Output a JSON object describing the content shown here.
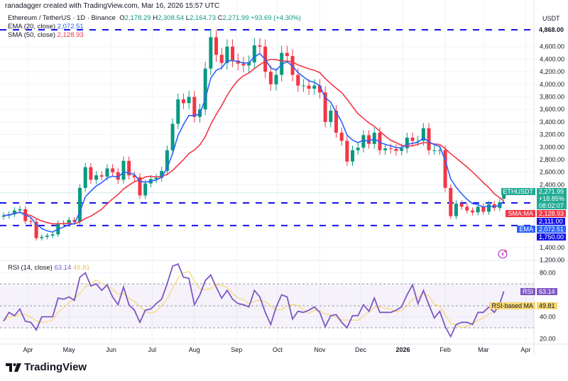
{
  "header": {
    "credit": "ranadagger created with TradingView.com, Mar 16, 2026 15:57 UTC",
    "symbol": "Ethereum / TetherUS · 1D · Binance",
    "open_label": "O",
    "open": "2,178.29",
    "high_label": "H",
    "high": "2,308.54",
    "low_label": "L",
    "low": "2,164.73",
    "close_label": "C",
    "close": "2,271.99",
    "change": "+93.69 (+4.30%)"
  },
  "indicators": {
    "ema_label": "EMA (20, close)",
    "ema_value": "2,072.51",
    "sma_label": "SMA (50, close)",
    "sma_value": "2,128.93",
    "rsi_label": "RSI (14, close)",
    "rsi_value": "63.14",
    "rsi_ma_value": "49.81"
  },
  "badges": {
    "symbol": "ETHUSDT",
    "price": "2,271.99",
    "change_pct": "+18.85%",
    "countdown": "08:02:07",
    "sma_name": "SMA:MA",
    "sma": "2,128.93",
    "level_mid": "2,111.00",
    "ema_name": "EMA",
    "ema": "2,072.51",
    "level_low": "1,750.00",
    "level_high": "4,868.00",
    "rsi_name": "RSI",
    "rsi": "63.14",
    "rsi_ma_name": "RSI-based MA",
    "rsi_ma": "49.81"
  },
  "axis": {
    "currency": "USDT",
    "price_ticks": [
      "4,600.00",
      "4,400.00",
      "4,200.00",
      "4,000.00",
      "3,800.00",
      "3,600.00",
      "3,400.00",
      "3,200.00",
      "3,000.00",
      "2,800.00",
      "2,600.00",
      "2,400.00",
      "1,400.00",
      "1,200.00"
    ],
    "rsi_ticks": [
      "80.00",
      "40.00",
      "20.00"
    ],
    "months": [
      "Apr",
      "May",
      "Jun",
      "Jul",
      "Aug",
      "Sep",
      "Oct",
      "Nov",
      "Dec",
      "2026",
      "Feb",
      "Mar",
      "Apr"
    ]
  },
  "colors": {
    "up": "#089981",
    "down": "#f23645",
    "ema": "#2962ff",
    "sma": "#f23645",
    "levels": "#1414e6",
    "rsi": "#7e57c2",
    "rsi_ma": "#f7d774"
  },
  "icons": {
    "alert": "lightning-icon",
    "logo": "tradingview-logo"
  },
  "logo_text": "TradingView",
  "chart_data": {
    "type": "candlestick",
    "title": "Ethereum / TetherUS · 1D · Binance",
    "y_scale": "linear",
    "ylim": [
      1100,
      5000
    ],
    "grid": true,
    "horizontal_levels": [
      4868,
      2111,
      1750
    ],
    "dates": [
      "2025-03-14",
      "2025-03-18",
      "2025-03-22",
      "2025-03-26",
      "2025-03-30",
      "2025-04-03",
      "2025-04-07",
      "2025-04-11",
      "2025-04-15",
      "2025-04-19",
      "2025-04-23",
      "2025-04-27",
      "2025-05-01",
      "2025-05-05",
      "2025-05-09",
      "2025-05-13",
      "2025-05-17",
      "2025-05-21",
      "2025-05-25",
      "2025-05-29",
      "2025-06-02",
      "2025-06-06",
      "2025-06-10",
      "2025-06-14",
      "2025-06-18",
      "2025-06-22",
      "2025-06-26",
      "2025-06-30",
      "2025-07-04",
      "2025-07-08",
      "2025-07-12",
      "2025-07-16",
      "2025-07-20",
      "2025-07-24",
      "2025-07-28",
      "2025-08-01",
      "2025-08-05",
      "2025-08-09",
      "2025-08-13",
      "2025-08-17",
      "2025-08-21",
      "2025-08-25",
      "2025-08-29",
      "2025-09-02",
      "2025-09-06",
      "2025-09-10",
      "2025-09-14",
      "2025-09-18",
      "2025-09-22",
      "2025-09-26",
      "2025-09-30",
      "2025-10-04",
      "2025-10-08",
      "2025-10-12",
      "2025-10-16",
      "2025-10-20",
      "2025-10-24",
      "2025-10-28",
      "2025-11-01",
      "2025-11-05",
      "2025-11-09",
      "2025-11-13",
      "2025-11-17",
      "2025-11-21",
      "2025-11-25",
      "2025-11-29",
      "2025-12-03",
      "2025-12-07",
      "2025-12-11",
      "2025-12-15",
      "2025-12-19",
      "2025-12-23",
      "2025-12-27",
      "2025-12-31",
      "2026-01-04",
      "2026-01-08",
      "2026-01-12",
      "2026-01-16",
      "2026-01-20",
      "2026-01-24",
      "2026-01-28",
      "2026-02-01",
      "2026-02-05",
      "2026-02-09",
      "2026-02-13",
      "2026-02-17",
      "2026-02-21",
      "2026-02-25",
      "2026-03-01",
      "2026-03-05",
      "2026-03-09",
      "2026-03-13",
      "2026-03-16"
    ],
    "close": [
      1910,
      1930,
      1990,
      2010,
      1820,
      1810,
      1550,
      1570,
      1590,
      1610,
      1790,
      1790,
      1840,
      1810,
      2350,
      2680,
      2480,
      2550,
      2530,
      2660,
      2600,
      2480,
      2780,
      2550,
      2520,
      2230,
      2420,
      2490,
      2510,
      2620,
      2950,
      3370,
      3760,
      3700,
      3800,
      3480,
      3600,
      4250,
      4750,
      4470,
      4340,
      4600,
      4380,
      4330,
      4300,
      4350,
      4620,
      4600,
      4200,
      4000,
      4150,
      4500,
      4450,
      4150,
      3980,
      3980,
      3930,
      3980,
      3870,
      3400,
      3580,
      3230,
      3100,
      2770,
      2950,
      2990,
      3190,
      3050,
      3230,
      2950,
      2980,
      2970,
      2940,
      2980,
      3150,
      3100,
      3100,
      3300,
      2950,
      2950,
      2950,
      2350,
      1900,
      2100,
      2050,
      1990,
      1960,
      2050,
      1970,
      2090,
      2030,
      2120,
      2271.99
    ],
    "last_candle": {
      "open": 2178.29,
      "high": 2308.54,
      "low": 2164.73,
      "close": 2271.99
    },
    "ema_period_days": 20,
    "sma_period_days": 50,
    "rsi": [
      36,
      44,
      41,
      47,
      36,
      35,
      28,
      40,
      40,
      40,
      57,
      56,
      58,
      55,
      76,
      80,
      68,
      70,
      64,
      69,
      58,
      51,
      67,
      51,
      46,
      35,
      46,
      47,
      52,
      56,
      70,
      86,
      88,
      76,
      75,
      51,
      60,
      73,
      78,
      67,
      57,
      64,
      56,
      52,
      51,
      49,
      64,
      58,
      44,
      33,
      49,
      60,
      58,
      38,
      45,
      44,
      46,
      49,
      44,
      31,
      41,
      42,
      35,
      30,
      41,
      41,
      51,
      45,
      57,
      44,
      44,
      44,
      46,
      49,
      60,
      69,
      52,
      64,
      51,
      39,
      45,
      31,
      22,
      33,
      35,
      35,
      33,
      44,
      44,
      49,
      44,
      52,
      63.14
    ],
    "rsi_ylim": [
      10,
      95
    ],
    "rsi_bands": [
      70,
      50,
      30
    ]
  }
}
